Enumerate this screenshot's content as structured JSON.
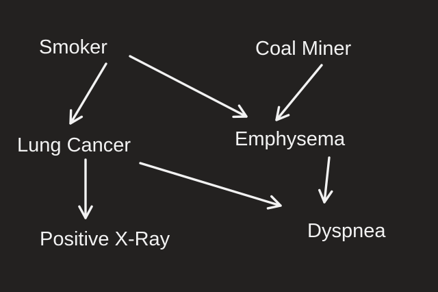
{
  "diagram": {
    "nodes": [
      {
        "id": "smoker",
        "label": "Smoker"
      },
      {
        "id": "coal_miner",
        "label": "Coal Miner"
      },
      {
        "id": "lung_cancer",
        "label": "Lung Cancer"
      },
      {
        "id": "emphysema",
        "label": "Emphysema"
      },
      {
        "id": "positive_xray",
        "label": "Positive X-Ray"
      },
      {
        "id": "dyspnea",
        "label": "Dyspnea"
      }
    ],
    "edges": [
      {
        "from": "smoker",
        "to": "lung_cancer"
      },
      {
        "from": "smoker",
        "to": "emphysema"
      },
      {
        "from": "coal_miner",
        "to": "emphysema"
      },
      {
        "from": "lung_cancer",
        "to": "positive_xray"
      },
      {
        "from": "lung_cancer",
        "to": "dyspnea"
      },
      {
        "from": "emphysema",
        "to": "dyspnea"
      }
    ],
    "colors": {
      "background": "#232120",
      "foreground": "#f2f2f2"
    }
  }
}
